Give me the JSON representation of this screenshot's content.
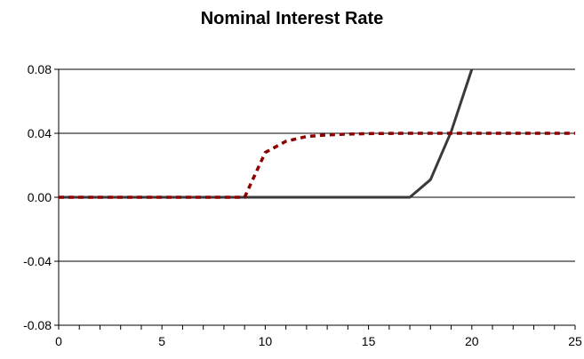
{
  "chart_data": {
    "type": "line",
    "title": "Nominal Interest Rate",
    "xlabel": "",
    "ylabel": "",
    "xlim": [
      0,
      25
    ],
    "ylim": [
      -0.08,
      0.08
    ],
    "x_ticks": [
      "0",
      "5",
      "10",
      "15",
      "20",
      "25"
    ],
    "y_ticks": [
      "0.08",
      "0.04",
      "0.00",
      "-0.04",
      "-0.08"
    ],
    "grid": "horizontal",
    "legend": "none",
    "series": [
      {
        "style": "solid",
        "color": "#3a3a3a",
        "x": [
          0,
          1,
          2,
          3,
          4,
          5,
          6,
          7,
          8,
          9,
          10,
          11,
          12,
          13,
          14,
          15,
          16,
          17,
          18,
          19,
          20
        ],
        "y": [
          0,
          0,
          0,
          0,
          0,
          0,
          0,
          0,
          0,
          0,
          0,
          0,
          0,
          0,
          0,
          0,
          0,
          0,
          0.011,
          0.041,
          0.08
        ]
      },
      {
        "style": "dashed",
        "color": "#8b0000",
        "x": [
          0,
          1,
          2,
          3,
          4,
          5,
          6,
          7,
          8,
          9,
          10,
          11,
          12,
          13,
          14,
          15,
          16,
          17,
          18,
          19,
          20,
          21,
          22,
          23,
          24,
          25
        ],
        "y": [
          0,
          0,
          0,
          0,
          0,
          0,
          0,
          0,
          0,
          0,
          0.028,
          0.035,
          0.038,
          0.039,
          0.0395,
          0.0398,
          0.0399,
          0.04,
          0.04,
          0.04,
          0.04,
          0.04,
          0.04,
          0.04,
          0.04,
          0.04
        ]
      }
    ]
  }
}
